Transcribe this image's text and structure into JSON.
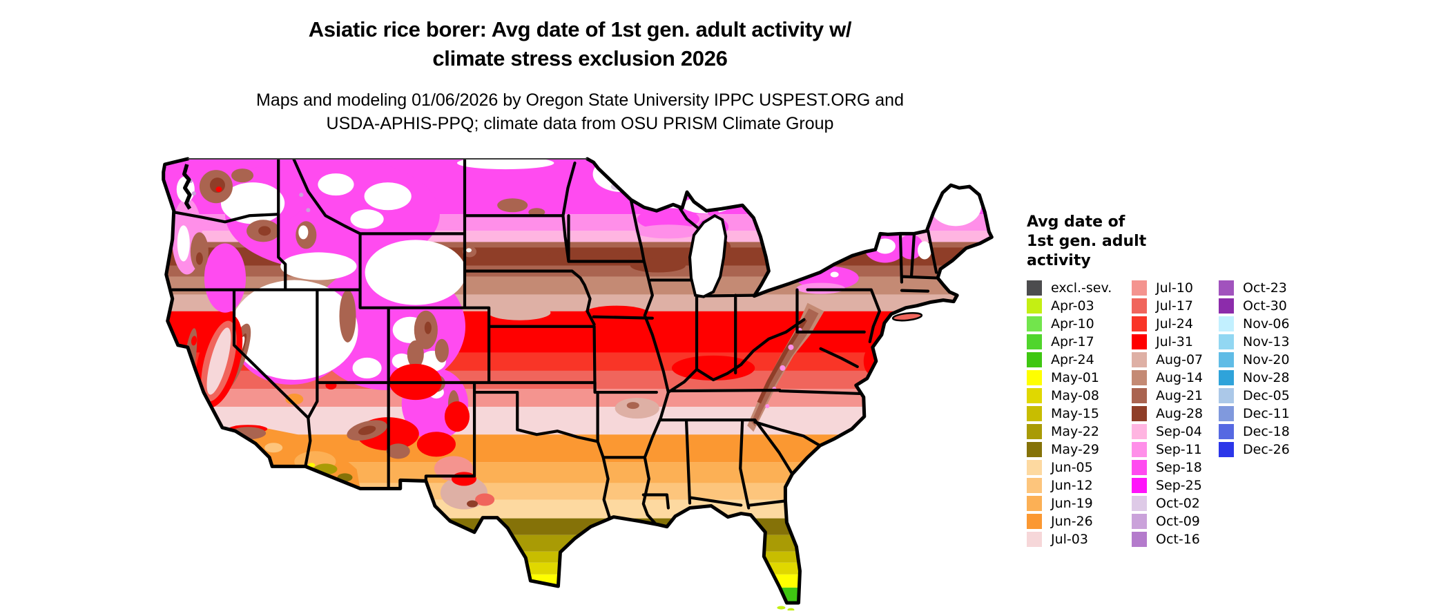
{
  "figure": {
    "title_line1": "Asiatic rice borer: Avg date of 1st gen. adult activity w/",
    "title_line2": "climate stress exclusion 2026",
    "subtitle_line1": "Maps and modeling 01/06/2026 by Oregon State University IPPC USPEST.ORG and",
    "subtitle_line2": "USDA-APHIS-PPQ; climate data from OSU PRISM Climate Group"
  },
  "legend": {
    "title_lines": [
      "Avg date of",
      "1st gen. adult",
      "activity"
    ],
    "columns": [
      [
        {
          "label": "excl.-sev.",
          "color": "#4c4c4e"
        },
        {
          "label": "Apr-03",
          "color": "#c4ef13"
        },
        {
          "label": "Apr-10",
          "color": "#72e54c"
        },
        {
          "label": "Apr-17",
          "color": "#50d52c"
        },
        {
          "label": "Apr-24",
          "color": "#3fc712"
        },
        {
          "label": "May-01",
          "color": "#ffff00"
        },
        {
          "label": "May-08",
          "color": "#e0d800"
        },
        {
          "label": "May-15",
          "color": "#c8bd00"
        },
        {
          "label": "May-22",
          "color": "#a99b05"
        },
        {
          "label": "May-29",
          "color": "#857208"
        },
        {
          "label": "Jun-05",
          "color": "#fdd9a0"
        },
        {
          "label": "Jun-12",
          "color": "#fdc57c"
        },
        {
          "label": "Jun-19",
          "color": "#fcb055"
        },
        {
          "label": "Jun-26",
          "color": "#fb9832"
        },
        {
          "label": "Jul-03",
          "color": "#f6d7d9"
        }
      ],
      [
        {
          "label": "Jul-10",
          "color": "#f4948f"
        },
        {
          "label": "Jul-17",
          "color": "#f0655c"
        },
        {
          "label": "Jul-24",
          "color": "#f93527"
        },
        {
          "label": "Jul-31",
          "color": "#ff0000"
        },
        {
          "label": "Aug-07",
          "color": "#deb0a5"
        },
        {
          "label": "Aug-14",
          "color": "#c48a74"
        },
        {
          "label": "Aug-21",
          "color": "#aa6450"
        },
        {
          "label": "Aug-28",
          "color": "#8f3e28"
        },
        {
          "label": "Sep-04",
          "color": "#ffb5e1"
        },
        {
          "label": "Sep-11",
          "color": "#ff8fe9"
        },
        {
          "label": "Sep-18",
          "color": "#ff4bf0"
        },
        {
          "label": "Sep-25",
          "color": "#ff14fa"
        },
        {
          "label": "Oct-02",
          "color": "#decae7"
        },
        {
          "label": "Oct-09",
          "color": "#caa2da"
        },
        {
          "label": "Oct-16",
          "color": "#b47bcc"
        }
      ],
      [
        {
          "label": "Oct-23",
          "color": "#a153bd"
        },
        {
          "label": "Oct-30",
          "color": "#8c2cab"
        },
        {
          "label": "Nov-06",
          "color": "#c2f0ff"
        },
        {
          "label": "Nov-13",
          "color": "#92d7f2"
        },
        {
          "label": "Nov-20",
          "color": "#60bce6"
        },
        {
          "label": "Nov-28",
          "color": "#2fa3da"
        },
        {
          "label": "Dec-05",
          "color": "#abc8e8"
        },
        {
          "label": "Dec-11",
          "color": "#8099dd"
        },
        {
          "label": "Dec-18",
          "color": "#5669e2"
        },
        {
          "label": "Dec-26",
          "color": "#2b36e9"
        }
      ]
    ]
  },
  "map": {
    "region": "Contiguous United States",
    "colors": {
      "white": "#ffffff",
      "outline": "#000000",
      "borderThin": "#3a3a3a",
      "magenta": "#ff4bf0",
      "magentaDeep": "#ff14fa",
      "pink": "#ff8fe9",
      "pinkLight": "#ffb5e1",
      "lavender": "#caa2da",
      "lavenderPale": "#decae7",
      "brownDark": "#8f3e28",
      "brown": "#aa6450",
      "brownLight": "#c48a74",
      "dusty": "#deb0a5",
      "red": "#ff0000",
      "red2": "#f93527",
      "salmon": "#f0655c",
      "salmonLight": "#f4948f",
      "palePink": "#f6d7d9",
      "orange": "#fb9832",
      "orange2": "#fcb055",
      "orange3": "#fdc57c",
      "peach": "#fdd9a0",
      "oliveDark": "#857208",
      "olive": "#a99b05",
      "oliveYellow": "#c8bd00",
      "yellowOlive": "#e0d800",
      "yellow": "#ffff00",
      "green": "#3fc712",
      "yellowGreen": "#c4ef13"
    }
  }
}
